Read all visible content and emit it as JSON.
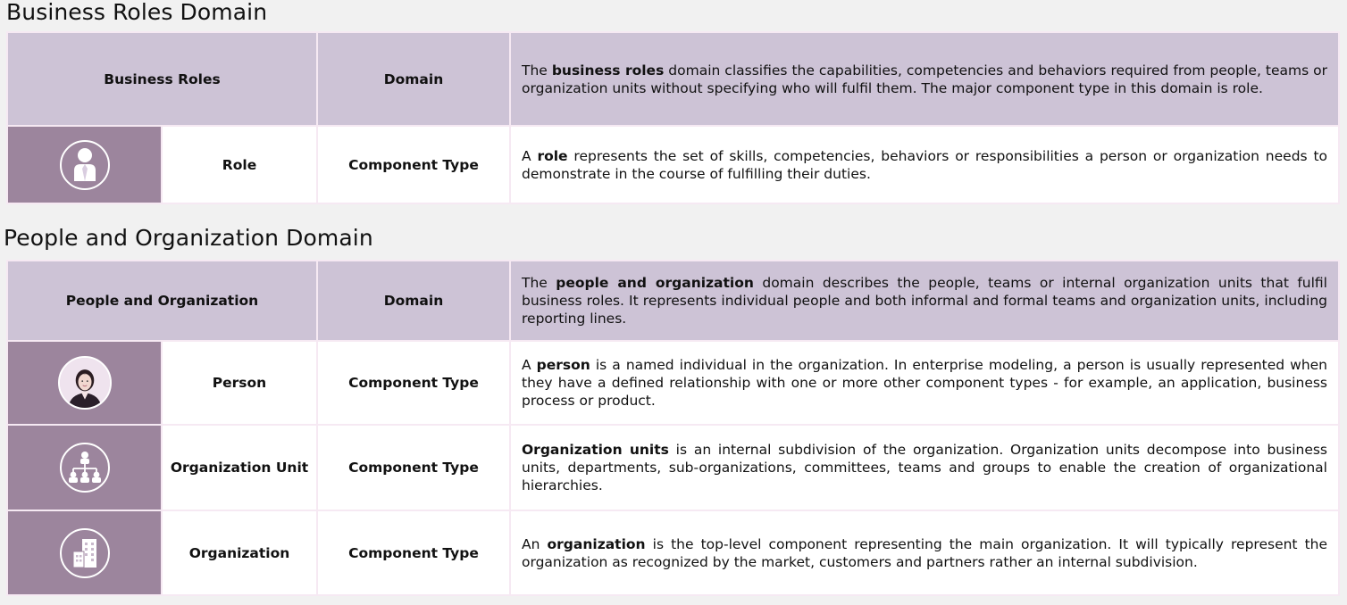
{
  "sections": [
    {
      "title": "Business Roles Domain",
      "header": {
        "name": "Business Roles",
        "type": "Domain",
        "desc_pre": "The ",
        "desc_bold": "business roles",
        "desc_post": " domain classifies the capabilities, competencies and behaviors required from people, teams or organization units without specifying who will fulfil them. The major component type in this domain is role."
      },
      "rows": [
        {
          "icon": "role-icon",
          "name": "Role",
          "type": "Component Type",
          "desc_pre": "A ",
          "desc_bold": "role",
          "desc_post": " represents the set of skills, competencies, behaviors or responsibilities a person or organization needs to demonstrate in the course of fulfilling their duties."
        }
      ]
    },
    {
      "title": "People and Organization Domain",
      "header": {
        "name": "People and Organization",
        "type": "Domain",
        "desc_pre": "The ",
        "desc_bold": "people and organization",
        "desc_post": " domain describes the people, teams or internal organization units that fulfil business roles. It represents individual people and both informal and formal teams and organization units, including reporting lines."
      },
      "rows": [
        {
          "icon": "person-photo-icon",
          "name": "Person",
          "type": "Component Type",
          "desc_pre": "A ",
          "desc_bold": "person",
          "desc_post": " is a named individual in the organization. In enterprise modeling, a person is usually represented when they have a defined relationship with one or more other component types - for example, an application, business process or product."
        },
        {
          "icon": "org-chart-icon",
          "name": "Organization Unit",
          "type": "Component Type",
          "desc_pre": "",
          "desc_bold": "Organization units",
          "desc_post": " is an internal subdivision of the organization. Organization units decompose into business units, departments, sub-organizations, committees, teams and groups to enable the creation of organizational hierarchies."
        },
        {
          "icon": "buildings-icon",
          "name": "Organization",
          "type": "Component Type",
          "desc_pre": "An ",
          "desc_bold": "organization",
          "desc_post": " is the top-level component representing the main organization. It will typically represent the organization as recognized by the market, customers and partners rather an internal subdivision."
        }
      ]
    }
  ],
  "colors": {
    "header_bg": "#cdc3d6",
    "icon_bg": "#9c859d",
    "border": "#f6e9f3",
    "page_bg": "#f1f1f1"
  }
}
